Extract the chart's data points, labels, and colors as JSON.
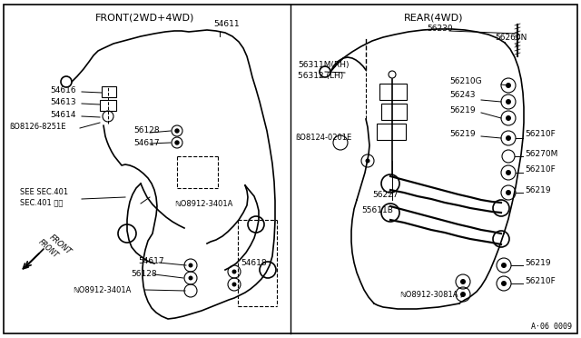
{
  "background_color": "#ffffff",
  "title_front": "FRONT(2WD+4WD)",
  "title_rear": "REAR(4WD)",
  "watermark": "A·06 0009",
  "font_size_label": 6.5,
  "font_size_title": 8.0
}
